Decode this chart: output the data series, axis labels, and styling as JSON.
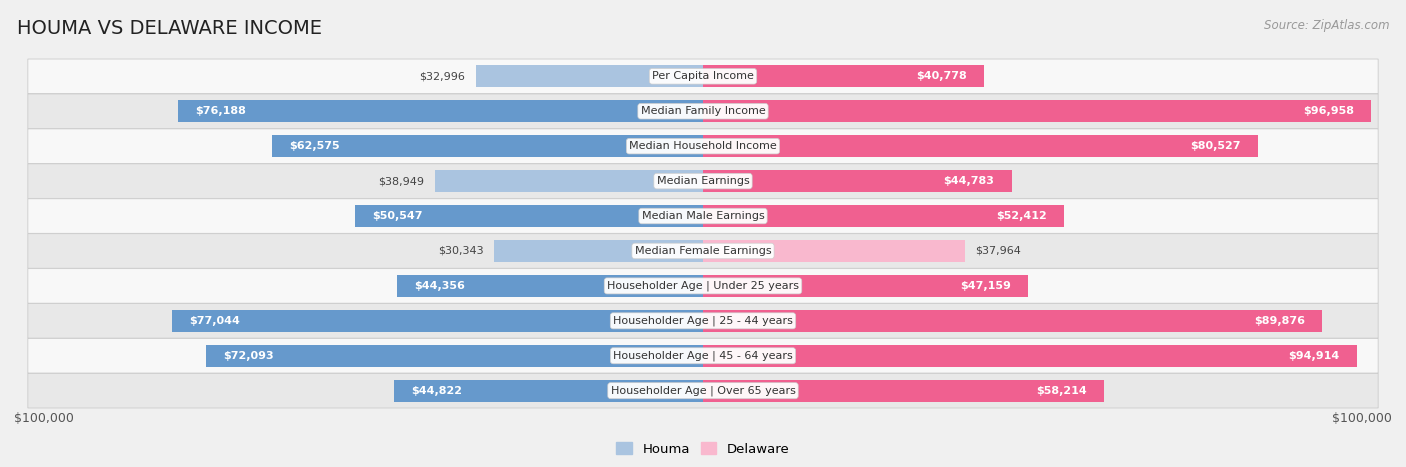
{
  "title": "HOUMA VS DELAWARE INCOME",
  "source": "Source: ZipAtlas.com",
  "categories": [
    "Per Capita Income",
    "Median Family Income",
    "Median Household Income",
    "Median Earnings",
    "Median Male Earnings",
    "Median Female Earnings",
    "Householder Age | Under 25 years",
    "Householder Age | 25 - 44 years",
    "Householder Age | 45 - 64 years",
    "Householder Age | Over 65 years"
  ],
  "houma_values": [
    32996,
    76188,
    62575,
    38949,
    50547,
    30343,
    44356,
    77044,
    72093,
    44822
  ],
  "delaware_values": [
    40778,
    96958,
    80527,
    44783,
    52412,
    37964,
    47159,
    89876,
    94914,
    58214
  ],
  "houma_color_light": "#aac4e0",
  "houma_color_dark": "#6699cc",
  "delaware_color_light": "#f9b8ce",
  "delaware_color_dark": "#f06090",
  "max_value": 100000,
  "bar_height": 0.62,
  "bg_color": "#f0f0f0",
  "row_bg_even": "#f8f8f8",
  "row_bg_odd": "#e8e8e8",
  "label_inside_threshold": 40000,
  "legend_houma": "Houma",
  "legend_delaware": "Delaware",
  "xlabel_left": "$100,000",
  "xlabel_right": "$100,000"
}
